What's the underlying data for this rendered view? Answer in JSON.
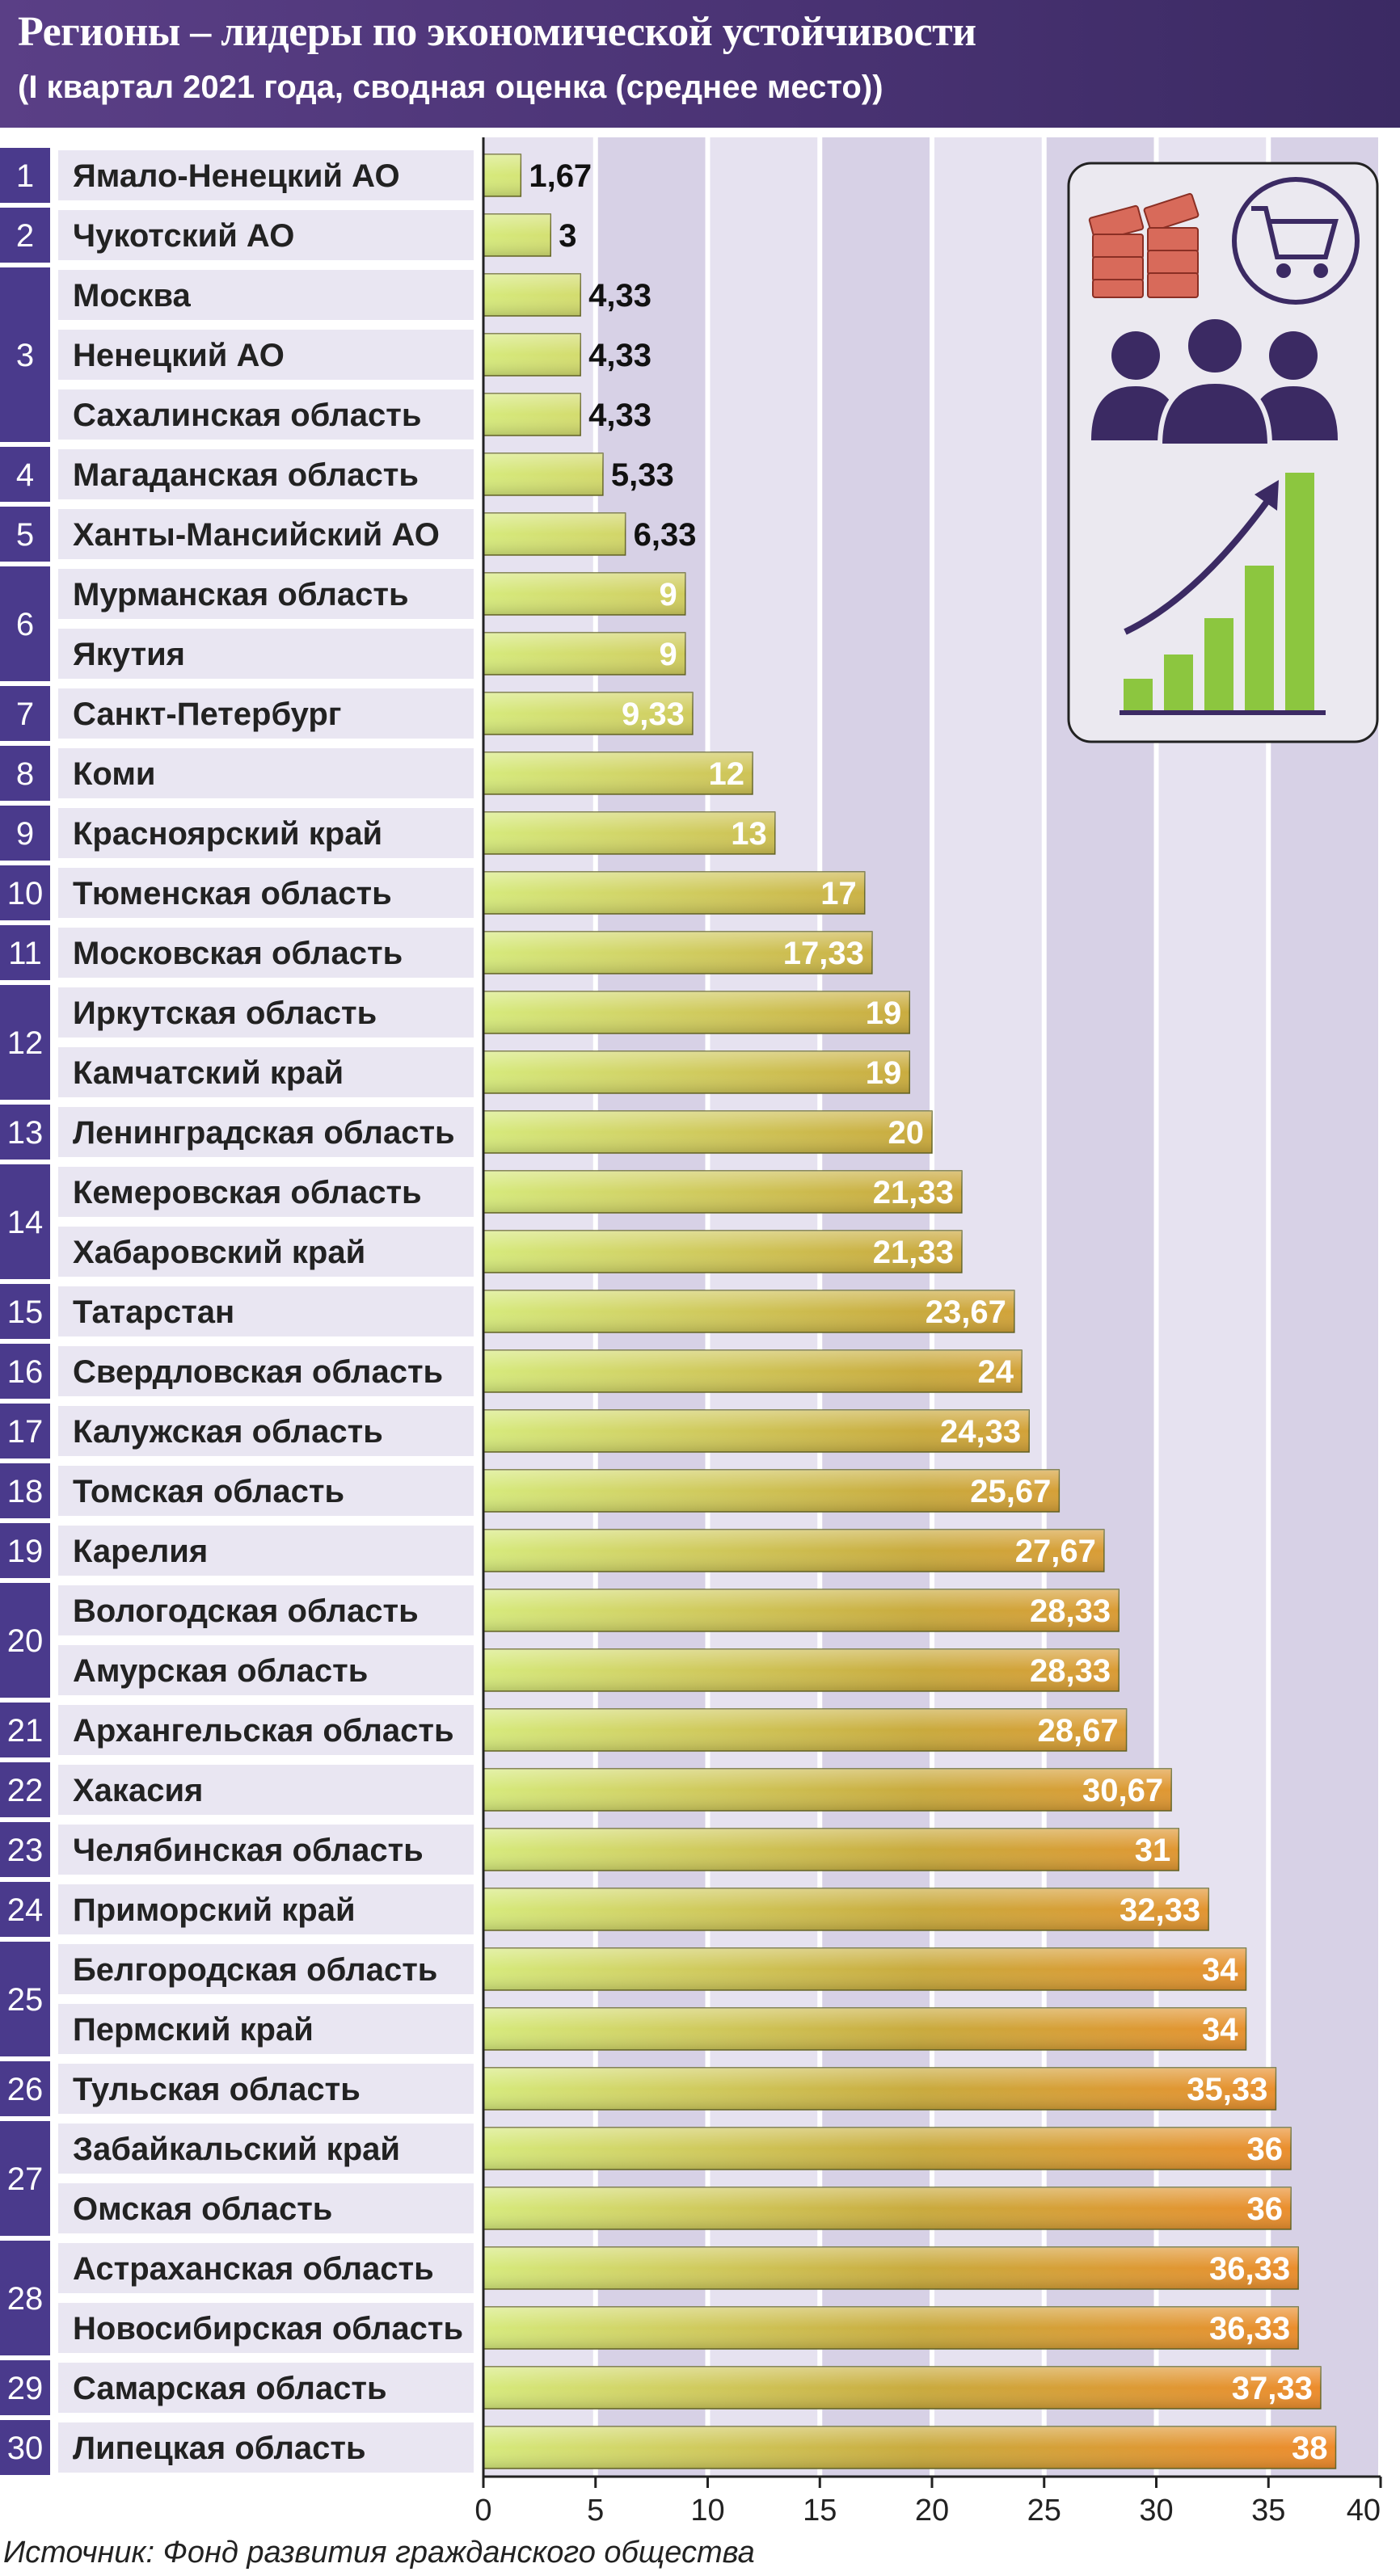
{
  "title": "Регионы – лидеры по экономической устойчивости",
  "subtitle": "(I квартал 2021 года, сводная оценка (среднее место))",
  "source": "Источник: Фонд развития гражданского общества",
  "colors": {
    "header": "#4a3374",
    "rank_bg": "#4a3a8c",
    "name_bg": "#e9e6f2",
    "bar_start": "#d4e87a",
    "bar_mid": "#c9a93c",
    "bar_end": "#f0892a",
    "plot_band_a": "#e6e2f0",
    "plot_band_b": "#d7d1e6"
  },
  "illustration": {
    "icons": [
      "money-stack-icon",
      "shopping-cart-icon",
      "people-icon",
      "growth-chart-icon"
    ]
  },
  "chart_data": {
    "type": "bar",
    "orientation": "horizontal",
    "xlim": [
      0,
      40
    ],
    "xticks": [
      "0",
      "5",
      "10",
      "15",
      "20",
      "25",
      "30",
      "35",
      "40"
    ],
    "rank_groups": [
      {
        "rank": "1",
        "count": 1
      },
      {
        "rank": "2",
        "count": 1
      },
      {
        "rank": "3",
        "count": 3
      },
      {
        "rank": "4",
        "count": 1
      },
      {
        "rank": "5",
        "count": 1
      },
      {
        "rank": "6",
        "count": 2
      },
      {
        "rank": "7",
        "count": 1
      },
      {
        "rank": "8",
        "count": 1
      },
      {
        "rank": "9",
        "count": 1
      },
      {
        "rank": "10",
        "count": 1
      },
      {
        "rank": "11",
        "count": 1
      },
      {
        "rank": "12",
        "count": 2
      },
      {
        "rank": "13",
        "count": 1
      },
      {
        "rank": "14",
        "count": 2
      },
      {
        "rank": "15",
        "count": 1
      },
      {
        "rank": "16",
        "count": 1
      },
      {
        "rank": "17",
        "count": 1
      },
      {
        "rank": "18",
        "count": 1
      },
      {
        "rank": "19",
        "count": 1
      },
      {
        "rank": "20",
        "count": 2
      },
      {
        "rank": "21",
        "count": 1
      },
      {
        "rank": "22",
        "count": 1
      },
      {
        "rank": "23",
        "count": 1
      },
      {
        "rank": "24",
        "count": 1
      },
      {
        "rank": "25",
        "count": 2
      },
      {
        "rank": "26",
        "count": 1
      },
      {
        "rank": "27",
        "count": 2
      },
      {
        "rank": "28",
        "count": 2
      },
      {
        "rank": "29",
        "count": 1
      },
      {
        "rank": "30",
        "count": 1
      }
    ],
    "categories": [
      "Ямало-Ненецкий АО",
      "Чукотский АО",
      "Москва",
      "Ненецкий АО",
      "Сахалинская область",
      "Магаданская область",
      "Ханты-Мансийский АО",
      "Мурманская область",
      "Якутия",
      "Санкт-Петербург",
      "Коми",
      "Красноярский край",
      "Тюменская область",
      "Московская область",
      "Иркутская область",
      "Камчатский край",
      "Ленинградская область",
      "Кемеровская область",
      "Хабаровский край",
      "Татарстан",
      "Свердловская область",
      "Калужская область",
      "Томская область",
      "Карелия",
      "Вологодская область",
      "Амурская область",
      "Архангельская область",
      "Хакасия",
      "Челябинская область",
      "Приморский край",
      "Белгородская область",
      "Пермский край",
      "Тульская область",
      "Забайкальский край",
      "Омская область",
      "Астраханская область",
      "Новосибирская область",
      "Самарская область",
      "Липецкая область"
    ],
    "values": [
      1.67,
      3,
      4.33,
      4.33,
      4.33,
      5.33,
      6.33,
      9,
      9,
      9.33,
      12,
      13,
      17,
      17.33,
      19,
      19,
      20,
      21.33,
      21.33,
      23.67,
      24,
      24.33,
      25.67,
      27.67,
      28.33,
      28.33,
      28.67,
      30.67,
      31,
      32.33,
      34,
      34,
      35.33,
      36,
      36,
      36.33,
      36.33,
      37.33,
      38
    ],
    "value_labels": [
      "1,67",
      "3",
      "4,33",
      "4,33",
      "4,33",
      "5,33",
      "6,33",
      "9",
      "9",
      "9,33",
      "12",
      "13",
      "17",
      "17,33",
      "19",
      "19",
      "20",
      "21,33",
      "21,33",
      "23,67",
      "24",
      "24,33",
      "25,67",
      "27,67",
      "28,33",
      "28,33",
      "28,67",
      "30,67",
      "31",
      "32,33",
      "34",
      "34",
      "35,33",
      "36",
      "36",
      "36,33",
      "36,33",
      "37,33",
      "38"
    ]
  }
}
